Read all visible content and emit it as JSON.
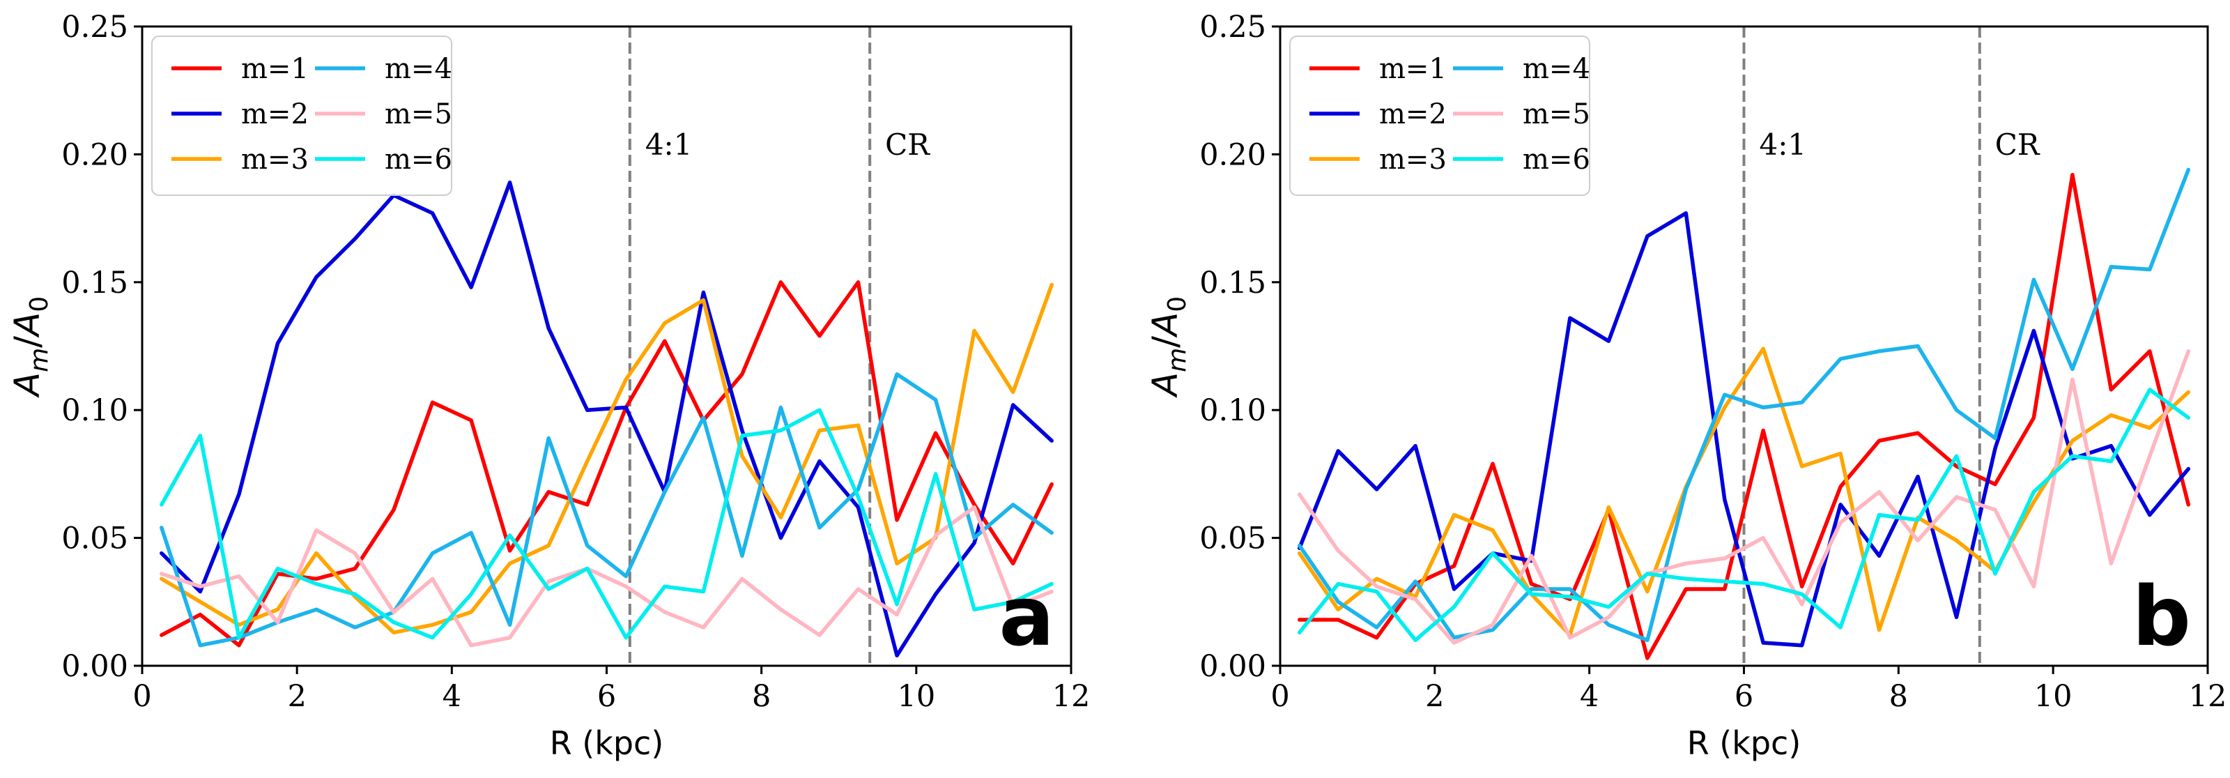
{
  "chart_data": [
    {
      "type": "line",
      "panel_label": "a",
      "xlabel": "R  (kpc)",
      "ylabel": "A_m/A_0",
      "xlim": [
        0,
        12
      ],
      "ylim": [
        0,
        0.25
      ],
      "xticks": [
        0,
        2,
        4,
        6,
        8,
        10,
        12
      ],
      "xtick_labels": [
        "0",
        "2",
        "4",
        "6",
        "8",
        "10",
        "12"
      ],
      "yticks": [
        0,
        0.05,
        0.1,
        0.15,
        0.2,
        0.25
      ],
      "ytick_labels": [
        "0.00",
        "0.05",
        "0.10",
        "0.15",
        "0.20",
        "0.25"
      ],
      "legend_position": "top-left",
      "vlines": [
        {
          "x": 6.3,
          "label": "4:1"
        },
        {
          "x": 9.4,
          "label": "CR"
        }
      ],
      "x": [
        0.25,
        0.75,
        1.25,
        1.75,
        2.25,
        2.75,
        3.25,
        3.75,
        4.25,
        4.75,
        5.25,
        5.75,
        6.25,
        6.75,
        7.25,
        7.75,
        8.25,
        8.75,
        9.25,
        9.75,
        10.25,
        10.75,
        11.25,
        11.75
      ],
      "series": [
        {
          "name": "m=1",
          "color": "#ff0000",
          "values": [
            0.012,
            0.02,
            0.008,
            0.036,
            0.034,
            0.038,
            0.061,
            0.103,
            0.096,
            0.045,
            0.068,
            0.063,
            0.101,
            0.127,
            0.096,
            0.114,
            0.15,
            0.129,
            0.15,
            0.057,
            0.091,
            0.063,
            0.04,
            0.071
          ]
        },
        {
          "name": "m=2",
          "color": "#0000dd",
          "values": [
            0.044,
            0.029,
            0.067,
            0.126,
            0.152,
            0.167,
            0.184,
            0.177,
            0.148,
            0.189,
            0.132,
            0.1,
            0.101,
            0.068,
            0.146,
            0.092,
            0.05,
            0.08,
            0.062,
            0.004,
            0.028,
            0.048,
            0.102,
            0.088
          ]
        },
        {
          "name": "m=3",
          "color": "#ffa500",
          "values": [
            0.034,
            0.025,
            0.016,
            0.022,
            0.044,
            0.027,
            0.013,
            0.016,
            0.021,
            0.04,
            0.047,
            0.08,
            0.112,
            0.134,
            0.143,
            0.082,
            0.058,
            0.092,
            0.094,
            0.04,
            0.05,
            0.131,
            0.107,
            0.149
          ]
        },
        {
          "name": "m=4",
          "color": "#1cb4ec",
          "values": [
            0.054,
            0.008,
            0.011,
            0.017,
            0.022,
            0.015,
            0.021,
            0.044,
            0.052,
            0.016,
            0.089,
            0.047,
            0.035,
            0.068,
            0.097,
            0.043,
            0.101,
            0.054,
            0.069,
            0.114,
            0.104,
            0.05,
            0.063,
            0.052
          ]
        },
        {
          "name": "m=5",
          "color": "#ffb6c1",
          "values": [
            0.036,
            0.031,
            0.035,
            0.017,
            0.053,
            0.044,
            0.021,
            0.034,
            0.008,
            0.011,
            0.033,
            0.038,
            0.031,
            0.021,
            0.015,
            0.034,
            0.022,
            0.012,
            0.03,
            0.02,
            0.051,
            0.062,
            0.023,
            0.029
          ]
        },
        {
          "name": "m=6",
          "color": "#00eeee",
          "values": [
            0.063,
            0.09,
            0.011,
            0.038,
            0.032,
            0.028,
            0.017,
            0.011,
            0.028,
            0.051,
            0.03,
            0.038,
            0.011,
            0.031,
            0.029,
            0.09,
            0.092,
            0.1,
            0.066,
            0.024,
            0.075,
            0.022,
            0.025,
            0.032
          ]
        }
      ]
    },
    {
      "type": "line",
      "panel_label": "b",
      "xlabel": "R  (kpc)",
      "ylabel": "A_m/A_0",
      "xlim": [
        0,
        12
      ],
      "ylim": [
        0,
        0.25
      ],
      "xticks": [
        0,
        2,
        4,
        6,
        8,
        10,
        12
      ],
      "xtick_labels": [
        "0",
        "2",
        "4",
        "6",
        "8",
        "10",
        "12"
      ],
      "yticks": [
        0,
        0.05,
        0.1,
        0.15,
        0.2,
        0.25
      ],
      "ytick_labels": [
        "0.00",
        "0.05",
        "0.10",
        "0.15",
        "0.20",
        "0.25"
      ],
      "legend_position": "top-left",
      "vlines": [
        {
          "x": 6.0,
          "label": "4:1"
        },
        {
          "x": 9.05,
          "label": "CR"
        }
      ],
      "x": [
        0.25,
        0.75,
        1.25,
        1.75,
        2.25,
        2.75,
        3.25,
        3.75,
        4.25,
        4.75,
        5.25,
        5.75,
        6.25,
        6.75,
        7.25,
        7.75,
        8.25,
        8.75,
        9.25,
        9.75,
        10.25,
        10.75,
        11.25,
        11.75
      ],
      "series": [
        {
          "name": "m=1",
          "color": "#ff0000",
          "values": [
            0.018,
            0.018,
            0.011,
            0.032,
            0.039,
            0.079,
            0.032,
            0.026,
            0.061,
            0.003,
            0.03,
            0.03,
            0.092,
            0.031,
            0.07,
            0.088,
            0.091,
            0.078,
            0.071,
            0.097,
            0.192,
            0.108,
            0.123,
            0.063
          ]
        },
        {
          "name": "m=2",
          "color": "#0000dd",
          "values": [
            0.046,
            0.084,
            0.069,
            0.086,
            0.03,
            0.044,
            0.041,
            0.136,
            0.127,
            0.168,
            0.177,
            0.065,
            0.009,
            0.008,
            0.063,
            0.043,
            0.074,
            0.019,
            0.085,
            0.131,
            0.081,
            0.086,
            0.059,
            0.077
          ]
        },
        {
          "name": "m=3",
          "color": "#ffa500",
          "values": [
            0.044,
            0.022,
            0.034,
            0.027,
            0.059,
            0.053,
            0.028,
            0.012,
            0.062,
            0.029,
            0.07,
            0.101,
            0.124,
            0.078,
            0.083,
            0.014,
            0.058,
            0.049,
            0.037,
            0.064,
            0.088,
            0.098,
            0.093,
            0.107
          ]
        },
        {
          "name": "m=4",
          "color": "#1cb4ec",
          "values": [
            0.047,
            0.025,
            0.015,
            0.033,
            0.011,
            0.014,
            0.03,
            0.03,
            0.016,
            0.01,
            0.069,
            0.106,
            0.101,
            0.103,
            0.12,
            0.123,
            0.125,
            0.1,
            0.089,
            0.151,
            0.116,
            0.156,
            0.155,
            0.194
          ]
        },
        {
          "name": "m=5",
          "color": "#ffb6c1",
          "values": [
            0.067,
            0.045,
            0.031,
            0.026,
            0.009,
            0.016,
            0.043,
            0.011,
            0.019,
            0.036,
            0.04,
            0.042,
            0.05,
            0.024,
            0.056,
            0.068,
            0.049,
            0.066,
            0.061,
            0.031,
            0.112,
            0.04,
            0.082,
            0.123
          ]
        },
        {
          "name": "m=6",
          "color": "#00eeee",
          "values": [
            0.013,
            0.032,
            0.029,
            0.01,
            0.023,
            0.044,
            0.028,
            0.027,
            0.023,
            0.036,
            0.034,
            0.033,
            0.032,
            0.028,
            0.015,
            0.059,
            0.057,
            0.082,
            0.036,
            0.068,
            0.082,
            0.08,
            0.108,
            0.097
          ]
        }
      ]
    }
  ]
}
